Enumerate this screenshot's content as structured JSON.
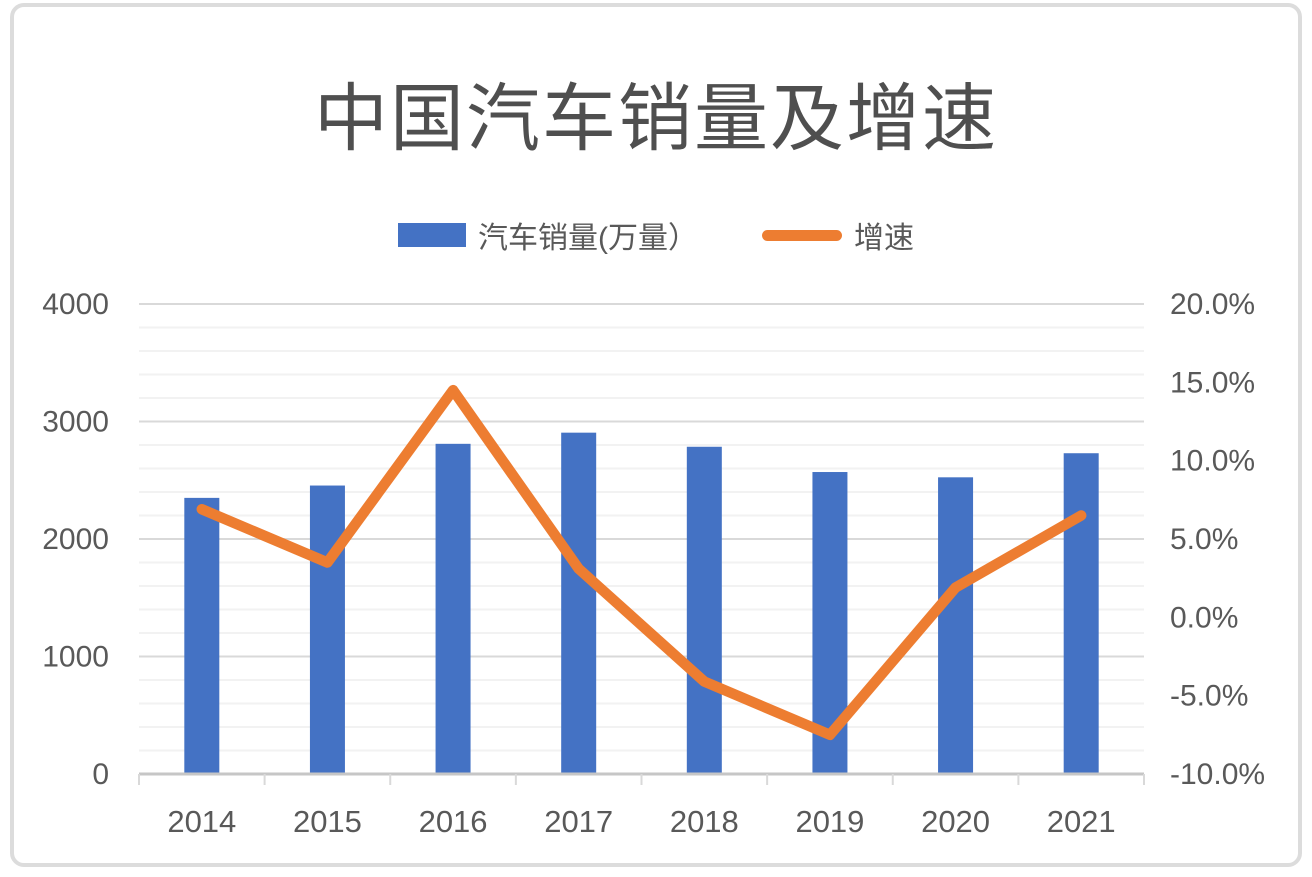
{
  "title": "中国汽车销量及增速",
  "legend": {
    "sales_label": "汽车销量(万量）",
    "growth_label": "增速"
  },
  "colors": {
    "bar": "#4472C4",
    "line": "#ED7D31",
    "text": "#595959",
    "title_text": "#4f4f4f",
    "grid_major": "#D9D9D9",
    "grid_minor": "#F2F2F2",
    "axis_line": "#C6C6C6",
    "tick": "#D9D9D9",
    "border": "#DCDCDC"
  },
  "chart_data": {
    "type": "bar",
    "combo": "bar+line",
    "title": "中国汽车销量及增速",
    "categories": [
      "2014",
      "2015",
      "2016",
      "2017",
      "2018",
      "2019",
      "2020",
      "2021"
    ],
    "series": [
      {
        "name": "汽车销量(万量）",
        "type": "bar",
        "axis": "left",
        "color": "#4472C4",
        "values": [
          2350,
          2455,
          2810,
          2905,
          2785,
          2570,
          2525,
          2730
        ]
      },
      {
        "name": "增速",
        "type": "line",
        "axis": "right",
        "color": "#ED7D31",
        "values": [
          6.9,
          3.5,
          14.5,
          3.1,
          -4.1,
          -7.5,
          1.9,
          6.5
        ]
      }
    ],
    "left_axis": {
      "min": 0,
      "max": 4000,
      "major_step": 1000,
      "minor_step": 200,
      "ticks": [
        {
          "label": "0",
          "value": 0
        },
        {
          "label": "1000",
          "value": 1000
        },
        {
          "label": "2000",
          "value": 2000
        },
        {
          "label": "3000",
          "value": 3000
        },
        {
          "label": "4000",
          "value": 4000
        }
      ]
    },
    "right_axis": {
      "min": -10,
      "max": 20,
      "major_step": 5,
      "ticks": [
        {
          "label": "20.0%",
          "value": 20
        },
        {
          "label": "15.0%",
          "value": 15
        },
        {
          "label": "10.0%",
          "value": 10
        },
        {
          "label": "5.0%",
          "value": 5
        },
        {
          "label": "0.0%",
          "value": 0
        },
        {
          "label": "-5.0%",
          "value": -5
        },
        {
          "label": "-10.0%",
          "value": -10
        }
      ]
    },
    "grid": true,
    "legend_position": "top"
  }
}
